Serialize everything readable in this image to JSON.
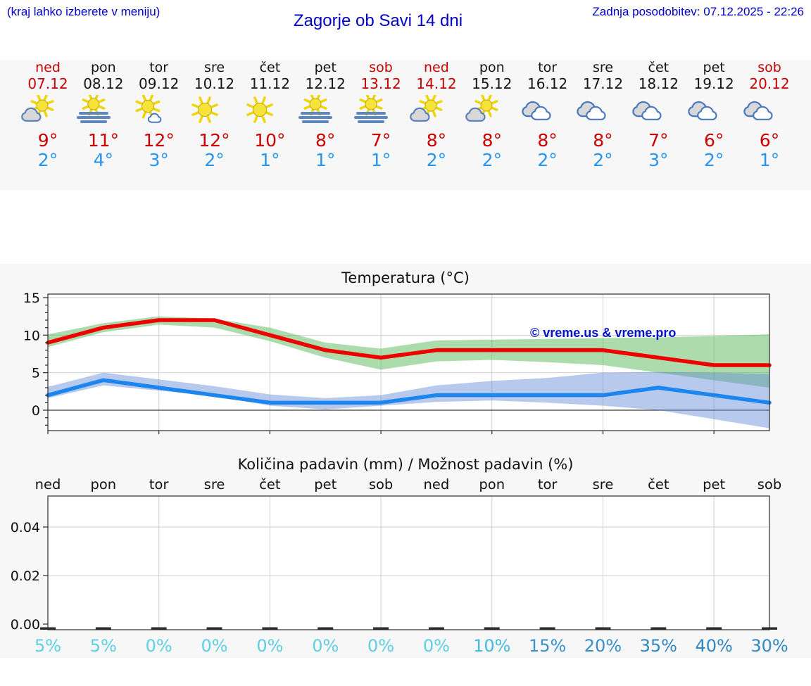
{
  "header": {
    "hint": "(kraj lahko izberete v meniju)",
    "title": "Zagorje ob Savi 14 dni",
    "last_update": "Zadnja posodobitev: 07.12.2025 - 22:26"
  },
  "days": [
    {
      "name": "ned",
      "date": "07.12",
      "red": true,
      "icon": "sun-behind-cloud",
      "high": "9°",
      "low": "2°"
    },
    {
      "name": "pon",
      "date": "08.12",
      "red": false,
      "icon": "fog-sun",
      "high": "11°",
      "low": "4°"
    },
    {
      "name": "tor",
      "date": "09.12",
      "red": false,
      "icon": "sun-small-cloud",
      "high": "12°",
      "low": "3°"
    },
    {
      "name": "sre",
      "date": "10.12",
      "red": false,
      "icon": "sun",
      "high": "12°",
      "low": "2°"
    },
    {
      "name": "čet",
      "date": "11.12",
      "red": false,
      "icon": "sun",
      "high": "10°",
      "low": "1°"
    },
    {
      "name": "pet",
      "date": "12.12",
      "red": false,
      "icon": "fog-sun",
      "high": "8°",
      "low": "1°"
    },
    {
      "name": "sob",
      "date": "13.12",
      "red": true,
      "icon": "fog-sun",
      "high": "7°",
      "low": "1°"
    },
    {
      "name": "ned",
      "date": "14.12",
      "red": true,
      "icon": "sun-behind-cloud",
      "high": "8°",
      "low": "2°"
    },
    {
      "name": "pon",
      "date": "15.12",
      "red": false,
      "icon": "sun-behind-cloud",
      "high": "8°",
      "low": "2°"
    },
    {
      "name": "tor",
      "date": "16.12",
      "red": false,
      "icon": "cloudy",
      "high": "8°",
      "low": "2°"
    },
    {
      "name": "sre",
      "date": "17.12",
      "red": false,
      "icon": "cloudy",
      "high": "8°",
      "low": "2°"
    },
    {
      "name": "čet",
      "date": "18.12",
      "red": false,
      "icon": "cloudy",
      "high": "7°",
      "low": "3°"
    },
    {
      "name": "pet",
      "date": "19.12",
      "red": false,
      "icon": "cloudy",
      "high": "6°",
      "low": "2°"
    },
    {
      "name": "sob",
      "date": "20.12",
      "red": true,
      "icon": "cloudy",
      "high": "6°",
      "low": "1°"
    }
  ],
  "chart_data": [
    {
      "type": "line",
      "title": "Temperatura (°C)",
      "watermark": "© vreme.us & vreme.pro",
      "yticks": [
        0,
        5,
        10,
        15
      ],
      "ylim": [
        -2.7,
        15.5
      ],
      "grid": "vertical every 2 days, horizontal at yticks, zero line dark",
      "series": [
        {
          "name": "max temperature",
          "color": "#ee0000",
          "values": [
            9,
            11,
            12,
            12,
            10,
            8,
            7,
            8,
            8,
            8,
            8,
            7,
            6,
            6
          ]
        },
        {
          "name": "min temperature",
          "color": "#1c86ee",
          "values": [
            2,
            4,
            3,
            2,
            1,
            1,
            1,
            2,
            2,
            2,
            2,
            3,
            2,
            1
          ]
        }
      ],
      "bands": [
        {
          "name": "max temperature range",
          "color": "rgba(90,185,90,0.5)",
          "upper": [
            10.1,
            11.6,
            12.5,
            12.2,
            11.0,
            9.0,
            8.2,
            9.3,
            9.4,
            9.5,
            9.6,
            9.7,
            9.9,
            10.1
          ],
          "lower": [
            8.4,
            10.4,
            11.4,
            11.0,
            9.2,
            7.0,
            5.4,
            6.5,
            6.7,
            6.4,
            6.0,
            5.0,
            4.0,
            3.0
          ]
        },
        {
          "name": "min temperature range",
          "color": "rgba(95,135,215,0.45)",
          "upper": [
            3.1,
            5.0,
            4.1,
            3.2,
            2.1,
            1.6,
            2.0,
            3.3,
            3.9,
            4.3,
            5.0,
            5.1,
            5.0,
            4.8
          ],
          "lower": [
            1.6,
            3.3,
            2.6,
            1.9,
            0.6,
            0.1,
            0.6,
            1.1,
            1.3,
            1.0,
            0.6,
            0.0,
            -1.2,
            -2.4
          ]
        }
      ]
    },
    {
      "type": "bar",
      "title": "Količina padavin (mm) / Možnost padavin (%)",
      "x_labels": [
        "ned",
        "pon",
        "tor",
        "sre",
        "čet",
        "pet",
        "sob",
        "ned",
        "pon",
        "tor",
        "sre",
        "čet",
        "pet",
        "sob"
      ],
      "yticks": [
        "0.00",
        "0.02",
        "0.04"
      ],
      "ylim": [
        0,
        0.055
      ],
      "values_mm": [
        0,
        0,
        0,
        0,
        0,
        0,
        0,
        0,
        0,
        0,
        0,
        0,
        0,
        0
      ],
      "probabilities": [
        {
          "label": "5%",
          "color": "#5ccfe3"
        },
        {
          "label": "5%",
          "color": "#5ccfe3"
        },
        {
          "label": "0%",
          "color": "#5ccfe3"
        },
        {
          "label": "0%",
          "color": "#5ccfe3"
        },
        {
          "label": "0%",
          "color": "#5ccfe3"
        },
        {
          "label": "0%",
          "color": "#5ccfe3"
        },
        {
          "label": "0%",
          "color": "#5ccfe3"
        },
        {
          "label": "0%",
          "color": "#5ccfe3"
        },
        {
          "label": "10%",
          "color": "#47b9da"
        },
        {
          "label": "15%",
          "color": "#3a92cd"
        },
        {
          "label": "20%",
          "color": "#368dc8"
        },
        {
          "label": "35%",
          "color": "#3187c3"
        },
        {
          "label": "40%",
          "color": "#3086c2"
        },
        {
          "label": "30%",
          "color": "#3288c4"
        }
      ]
    }
  ]
}
